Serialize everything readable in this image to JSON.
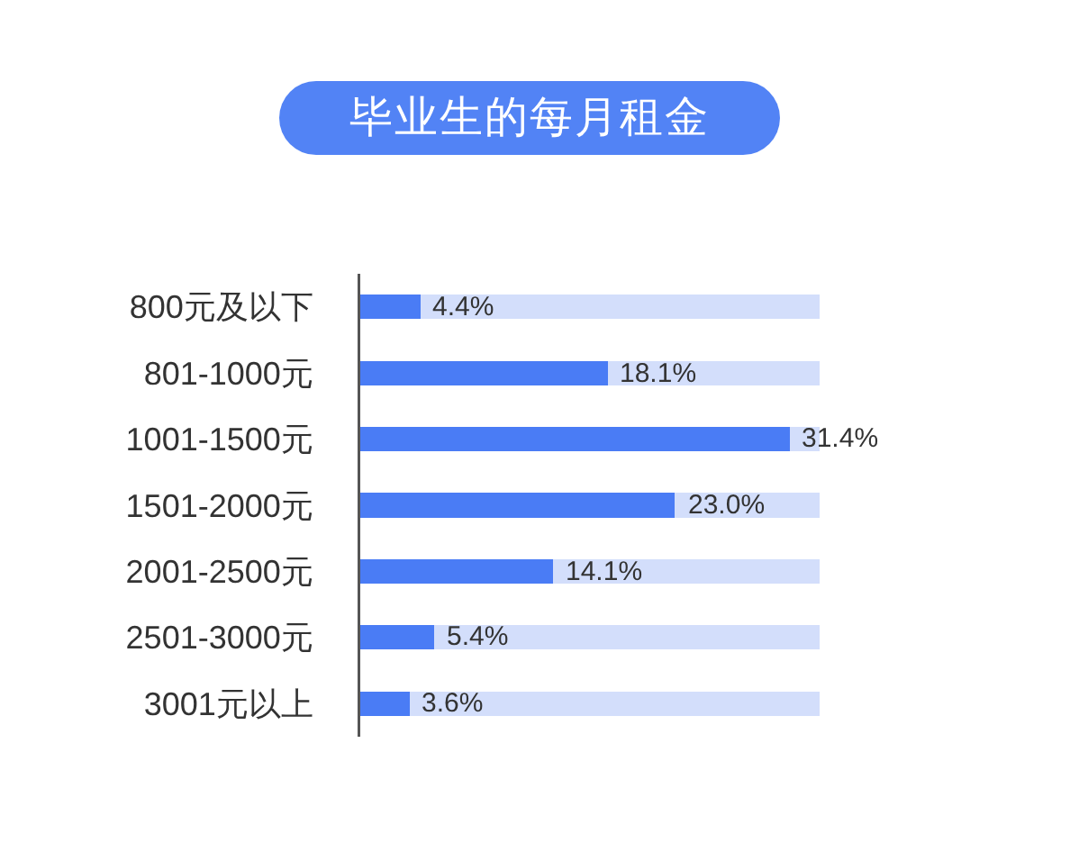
{
  "chart_data": {
    "type": "bar",
    "title": "毕业生的每月租金",
    "orientation": "horizontal",
    "stacked": true,
    "categories": [
      "800元及以下",
      "801-1000元",
      "1001-1500元",
      "1501-2000元",
      "2001-2500元",
      "2501-3000元",
      "3001元以上"
    ],
    "series": [
      {
        "color": "#4a7cf5",
        "values": [
          4.4,
          18.1,
          31.4,
          23.0,
          14.1,
          5.4,
          3.6
        ],
        "value_labels": [
          "4.4%",
          "18.1%",
          "31.4%",
          "23.0%",
          "14.1%",
          "5.4%",
          "3.6%"
        ]
      },
      {
        "color": "#d3defb",
        "values": [
          29.2,
          15.5,
          2.2,
          10.6,
          19.5,
          28.2,
          30.0
        ]
      }
    ],
    "xlim": [
      0,
      33.6
    ],
    "tick_labels": "y"
  }
}
